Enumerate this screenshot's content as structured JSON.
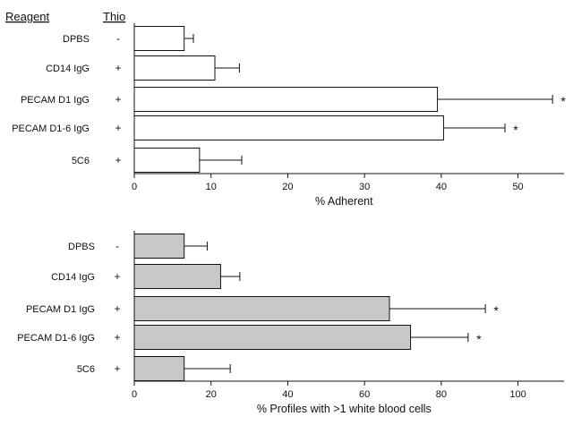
{
  "headers": {
    "reagent": "Reagent",
    "thio": "Thio"
  },
  "chart_data": [
    {
      "type": "bar",
      "orientation": "horizontal",
      "categories": [
        "DPBS",
        "CD14 IgG",
        "PECAM D1 IgG",
        "PECAM D1-6 IgG",
        "5C6"
      ],
      "thio": [
        "-",
        "+",
        "+",
        "+",
        "+"
      ],
      "values": [
        6.5,
        10.5,
        39.5,
        40.3,
        8.5
      ],
      "errors": [
        1.2,
        3.2,
        15.0,
        8.0,
        5.5
      ],
      "significance": [
        "",
        "",
        "*",
        "*",
        ""
      ],
      "xlabel": "% Adherent",
      "xlim": [
        0,
        56
      ],
      "xticks": [
        0,
        10,
        20,
        30,
        40,
        50
      ],
      "bar_color": "#ffffff"
    },
    {
      "type": "bar",
      "orientation": "horizontal",
      "categories": [
        "DPBS",
        "CD14 IgG",
        "PECAM D1 IgG",
        "PECAM D1-6 IgG",
        "5C6"
      ],
      "thio": [
        "-",
        "+",
        "+",
        "+",
        "+"
      ],
      "values": [
        13,
        22.5,
        66.5,
        72,
        13
      ],
      "errors": [
        6,
        5,
        25,
        15,
        12
      ],
      "significance": [
        "",
        "",
        "*",
        "*",
        ""
      ],
      "xlabel": "% Profiles with >1 white blood cells",
      "xlim": [
        0,
        112
      ],
      "xticks": [
        0,
        20,
        40,
        60,
        80,
        100
      ],
      "bar_color": "#c8c8c8"
    }
  ]
}
